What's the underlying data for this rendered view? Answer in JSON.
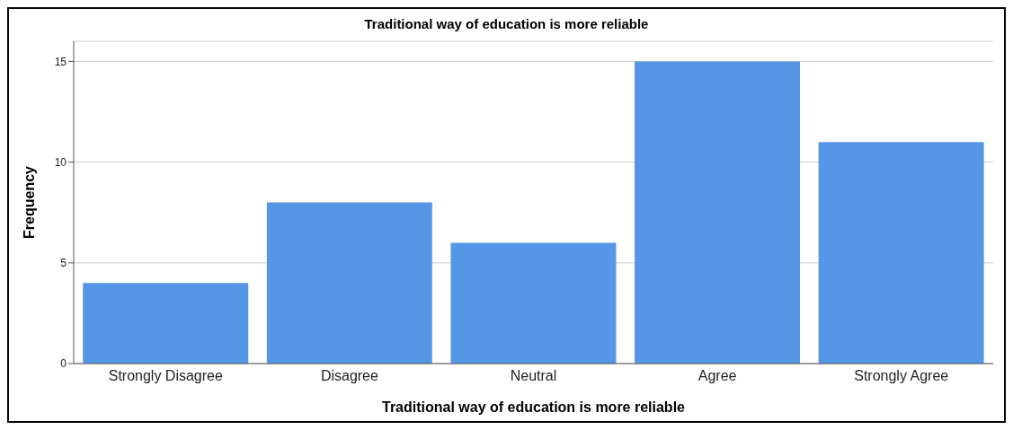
{
  "chart_data": {
    "type": "bar",
    "title": "Traditional way of education is more reliable",
    "xlabel": "Traditional way of education is more reliable",
    "ylabel": "Frequency",
    "categories": [
      "Strongly Disagree",
      "Disagree",
      "Neutral",
      "Agree",
      "Strongly Agree"
    ],
    "values": [
      4,
      8,
      6,
      15,
      11
    ],
    "color": "#5596e6",
    "ylim": [
      0,
      16
    ],
    "yticks": [
      0,
      5,
      10,
      15
    ],
    "grid": "y"
  }
}
